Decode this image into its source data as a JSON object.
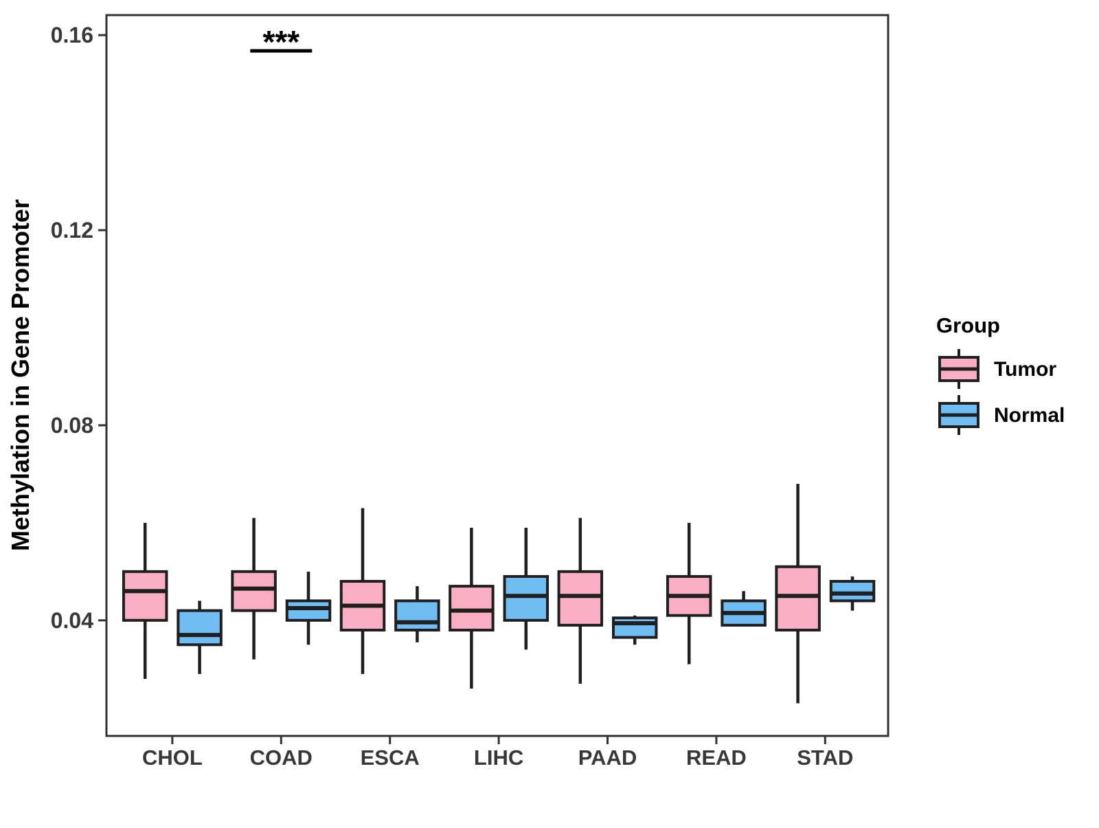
{
  "chart_data": {
    "type": "boxplot",
    "title": "",
    "xlabel": "",
    "ylabel": "Methylation in Gene Promoter",
    "legend_title": "Group",
    "categories": [
      "CHOL",
      "COAD",
      "ESCA",
      "LIHC",
      "PAAD",
      "READ",
      "STAD"
    ],
    "groups": [
      {
        "name": "Tumor",
        "color": "#F9AEC5"
      },
      {
        "name": "Normal",
        "color": "#6FBDF2"
      }
    ],
    "colors": {
      "tumor_fill": "#F9AEC5",
      "normal_fill": "#6FBDF2",
      "box_border": "#1F1F1F",
      "axis_text": "#383838",
      "panel_border": "#333333",
      "annotation": "#000000"
    },
    "ylim": [
      0.0163,
      0.1641
    ],
    "yticks": [
      {
        "v": 0.04,
        "label": "0.04"
      },
      {
        "v": 0.08,
        "label": "0.08"
      },
      {
        "v": 0.12,
        "label": "0.12"
      },
      {
        "v": 0.16,
        "label": "0.16"
      }
    ],
    "grid": false,
    "legend_position": "right",
    "boxes": [
      {
        "category": "CHOL",
        "group": "Tumor",
        "whisker_low": 0.028,
        "q1": 0.04,
        "median": 0.046,
        "q3": 0.05,
        "whisker_high": 0.06
      },
      {
        "category": "CHOL",
        "group": "Normal",
        "whisker_low": 0.029,
        "q1": 0.035,
        "median": 0.037,
        "q3": 0.042,
        "whisker_high": 0.044
      },
      {
        "category": "COAD",
        "group": "Tumor",
        "whisker_low": 0.032,
        "q1": 0.042,
        "median": 0.0465,
        "q3": 0.05,
        "whisker_high": 0.061
      },
      {
        "category": "COAD",
        "group": "Normal",
        "whisker_low": 0.035,
        "q1": 0.04,
        "median": 0.0425,
        "q3": 0.044,
        "whisker_high": 0.05
      },
      {
        "category": "ESCA",
        "group": "Tumor",
        "whisker_low": 0.029,
        "q1": 0.038,
        "median": 0.043,
        "q3": 0.048,
        "whisker_high": 0.063
      },
      {
        "category": "ESCA",
        "group": "Normal",
        "whisker_low": 0.0355,
        "q1": 0.038,
        "median": 0.0396,
        "q3": 0.044,
        "whisker_high": 0.047
      },
      {
        "category": "LIHC",
        "group": "Tumor",
        "whisker_low": 0.026,
        "q1": 0.038,
        "median": 0.042,
        "q3": 0.047,
        "whisker_high": 0.059
      },
      {
        "category": "LIHC",
        "group": "Normal",
        "whisker_low": 0.034,
        "q1": 0.04,
        "median": 0.045,
        "q3": 0.049,
        "whisker_high": 0.059
      },
      {
        "category": "PAAD",
        "group": "Tumor",
        "whisker_low": 0.027,
        "q1": 0.039,
        "median": 0.045,
        "q3": 0.05,
        "whisker_high": 0.061
      },
      {
        "category": "PAAD",
        "group": "Normal",
        "whisker_low": 0.035,
        "q1": 0.0365,
        "median": 0.0394,
        "q3": 0.0405,
        "whisker_high": 0.041
      },
      {
        "category": "READ",
        "group": "Tumor",
        "whisker_low": 0.031,
        "q1": 0.041,
        "median": 0.045,
        "q3": 0.049,
        "whisker_high": 0.06
      },
      {
        "category": "READ",
        "group": "Normal",
        "whisker_low": 0.0388,
        "q1": 0.039,
        "median": 0.0415,
        "q3": 0.044,
        "whisker_high": 0.046
      },
      {
        "category": "STAD",
        "group": "Tumor",
        "whisker_low": 0.023,
        "q1": 0.038,
        "median": 0.045,
        "q3": 0.051,
        "whisker_high": 0.068
      },
      {
        "category": "STAD",
        "group": "Normal",
        "whisker_low": 0.042,
        "q1": 0.044,
        "median": 0.0455,
        "q3": 0.048,
        "whisker_high": 0.049
      }
    ],
    "significance": [
      {
        "category": "COAD",
        "label": "***"
      }
    ]
  }
}
